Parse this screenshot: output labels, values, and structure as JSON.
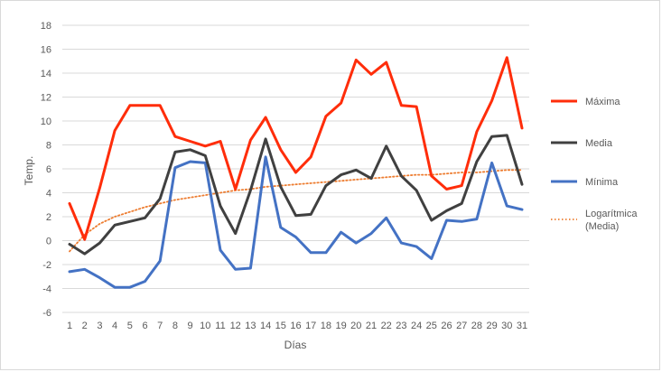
{
  "chart_data": {
    "type": "line",
    "title": "",
    "xlabel": "Días",
    "ylabel": "Temp.",
    "ylim": [
      -6,
      18
    ],
    "y_ticks": [
      -6,
      -4,
      -2,
      0,
      2,
      4,
      6,
      8,
      10,
      12,
      14,
      16,
      18
    ],
    "grid": "horizontal",
    "legend_position": "right",
    "x": [
      1,
      2,
      3,
      4,
      5,
      6,
      7,
      8,
      9,
      10,
      11,
      12,
      13,
      14,
      15,
      16,
      17,
      18,
      19,
      20,
      21,
      22,
      23,
      24,
      25,
      26,
      27,
      28,
      29,
      30,
      31
    ],
    "series": [
      {
        "name": "Máxima",
        "color": "#ff2d0a",
        "style": "solid",
        "values": [
          3.1,
          0.1,
          4.4,
          9.2,
          11.3,
          11.3,
          11.3,
          8.7,
          8.3,
          7.9,
          8.3,
          4.3,
          8.4,
          10.3,
          7.6,
          5.7,
          7.0,
          10.4,
          11.5,
          15.1,
          13.9,
          14.9,
          11.3,
          11.2,
          5.4,
          4.3,
          4.6,
          9.1,
          11.7,
          15.3,
          9.4
        ]
      },
      {
        "name": "Media",
        "color": "#404040",
        "style": "solid",
        "values": [
          -0.3,
          -1.1,
          -0.2,
          1.3,
          1.6,
          1.9,
          3.5,
          7.4,
          7.6,
          7.1,
          2.9,
          0.6,
          4.2,
          8.5,
          4.5,
          2.1,
          2.2,
          4.6,
          5.5,
          5.9,
          5.2,
          7.9,
          5.4,
          4.2,
          1.7,
          2.5,
          3.1,
          6.6,
          8.7,
          8.8,
          4.7
        ]
      },
      {
        "name": "Mínima",
        "color": "#4472c4",
        "style": "solid",
        "values": [
          -2.6,
          -2.4,
          -3.1,
          -3.9,
          -3.9,
          -3.4,
          -1.7,
          6.1,
          6.6,
          6.5,
          -0.8,
          -2.4,
          -2.3,
          7.0,
          1.1,
          0.3,
          -1.0,
          -1.0,
          0.7,
          -0.2,
          0.6,
          1.9,
          -0.2,
          -0.5,
          -1.5,
          1.7,
          1.6,
          1.8,
          6.5,
          2.9,
          2.6
        ]
      },
      {
        "name": "Logarítmica\n(Media)",
        "color": "#ed7d31",
        "style": "dotted",
        "trendline_of": "Media",
        "values": [
          -0.9,
          0.5,
          1.4,
          2.0,
          2.4,
          2.8,
          3.1,
          3.4,
          3.6,
          3.8,
          4.0,
          4.2,
          4.3,
          4.5,
          4.6,
          4.7,
          4.8,
          4.9,
          5.0,
          5.1,
          5.2,
          5.3,
          5.4,
          5.5,
          5.5,
          5.6,
          5.7,
          5.7,
          5.8,
          5.9,
          5.9
        ]
      }
    ]
  }
}
